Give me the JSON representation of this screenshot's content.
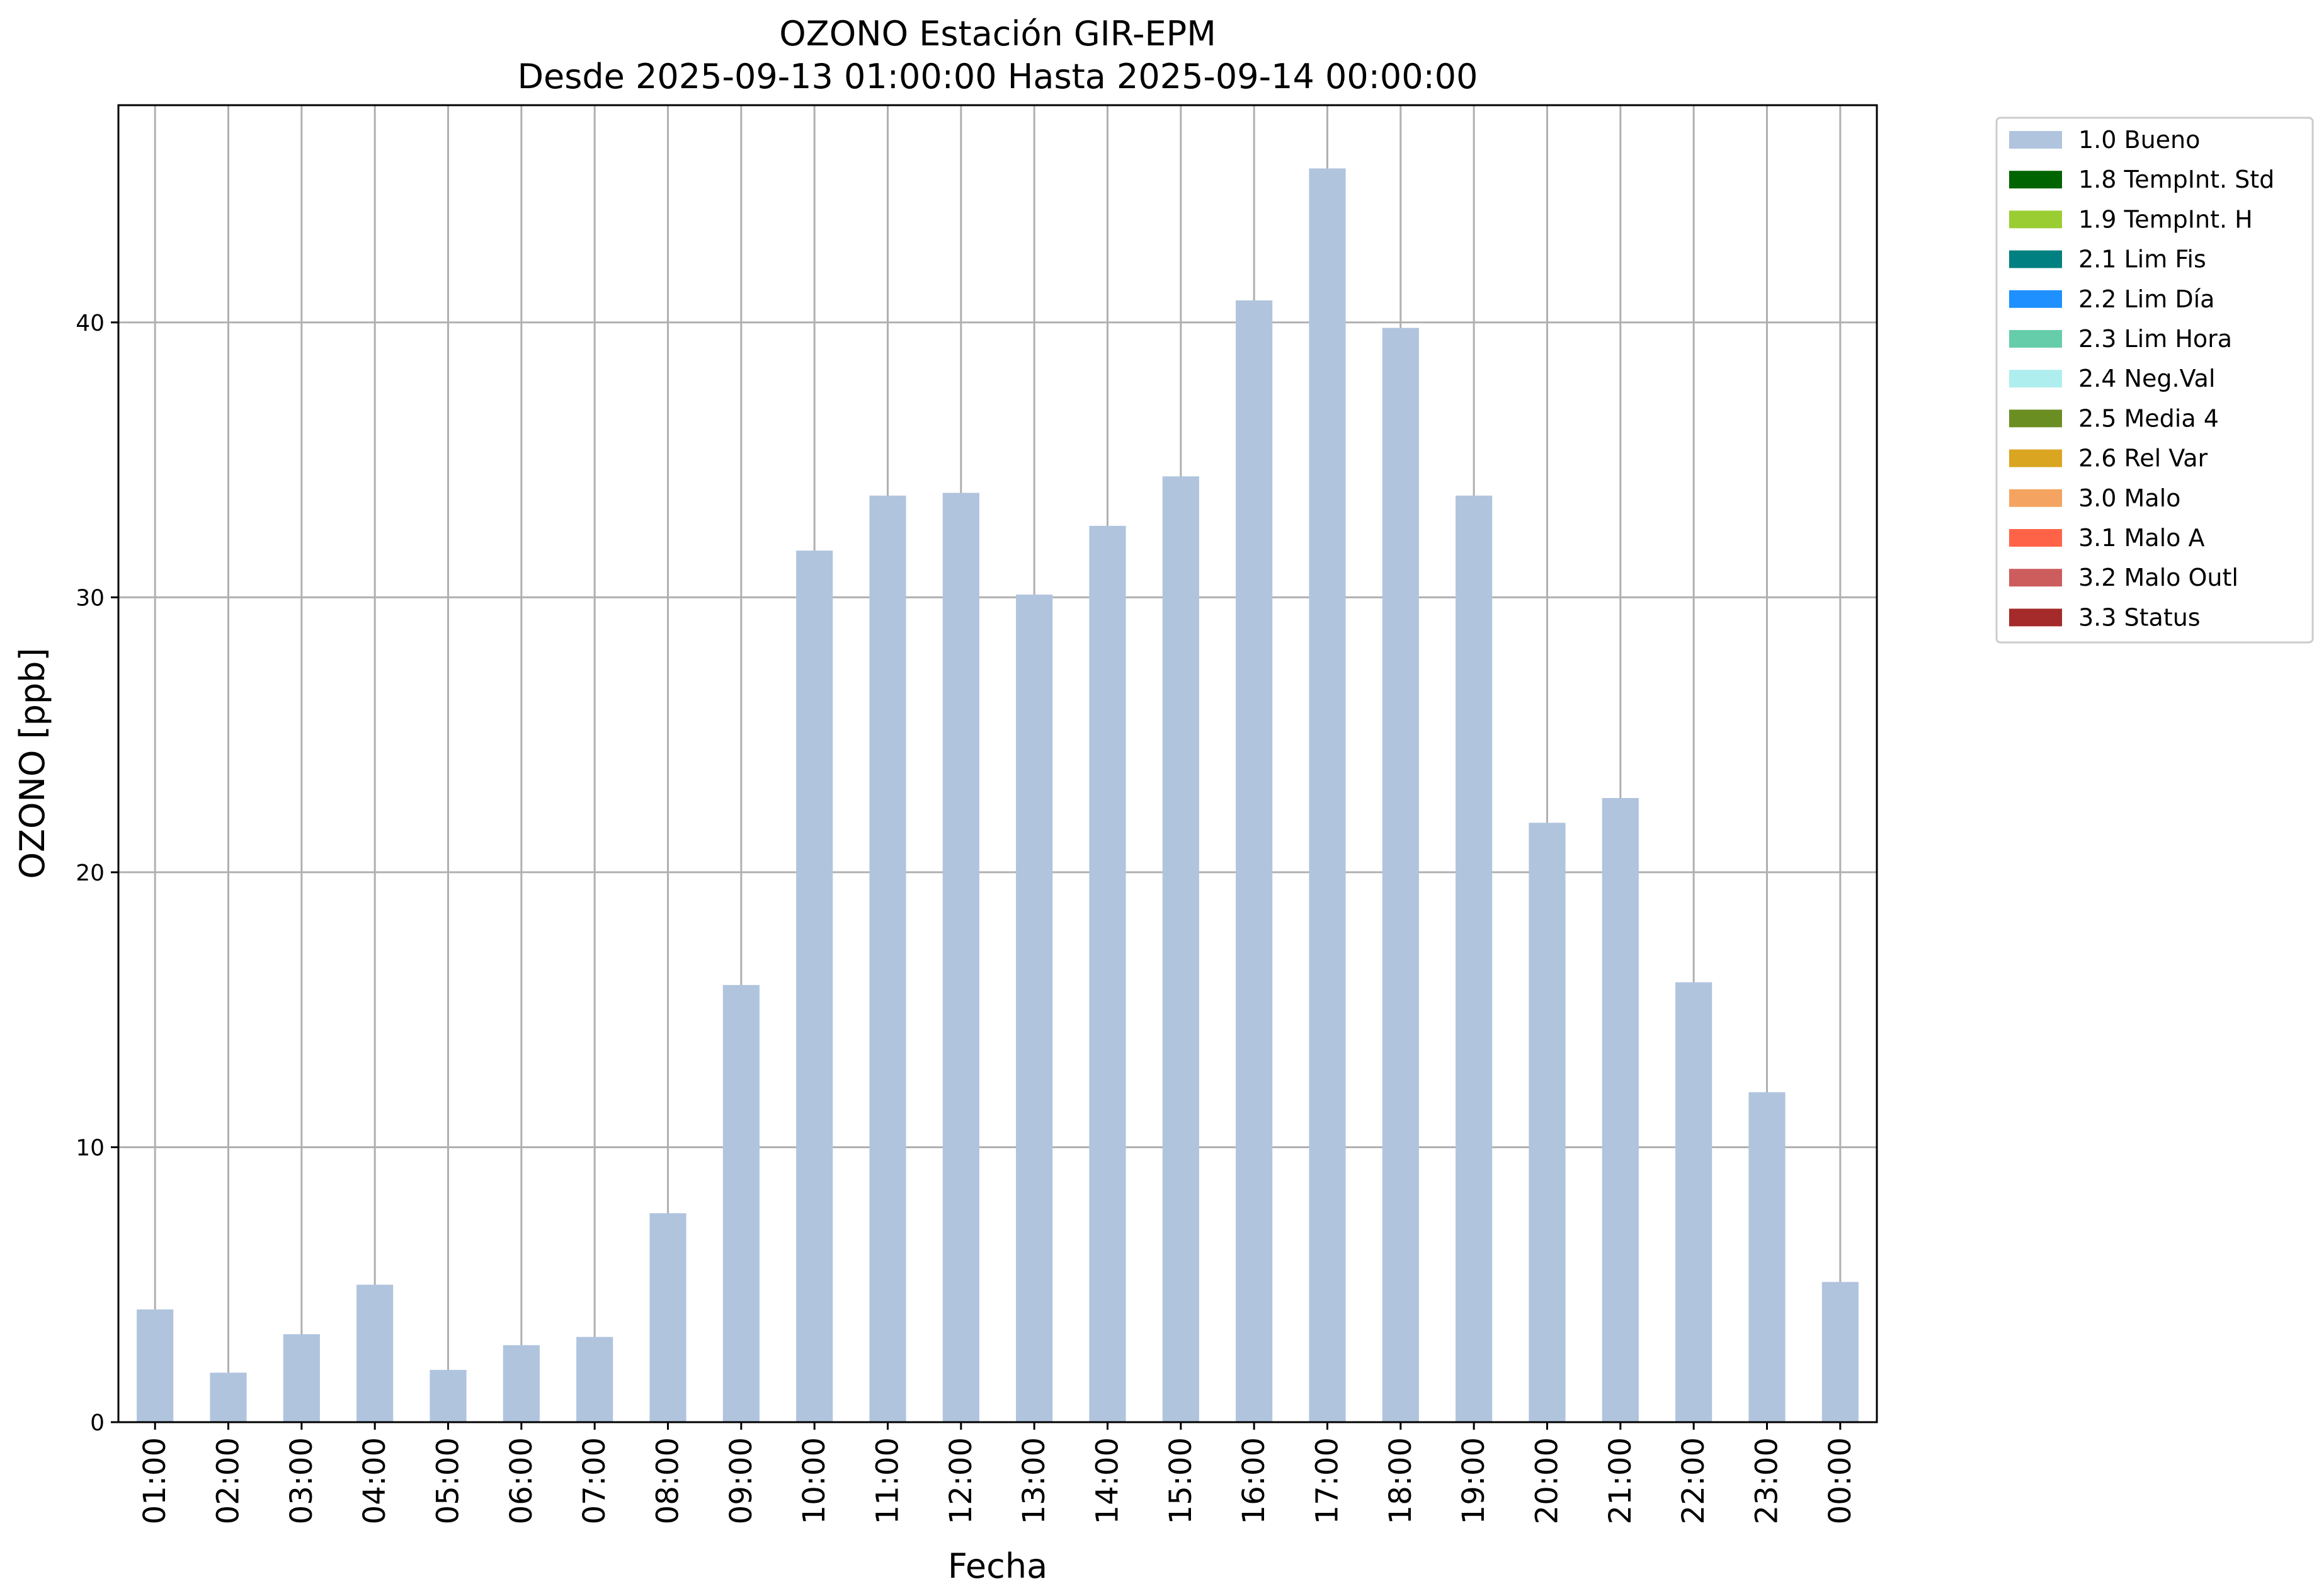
{
  "chart_data": {
    "type": "bar",
    "title_line1": "OZONO Estación GIR-EPM",
    "title_line2": "Desde 2025-09-13 01:00:00 Hasta 2025-09-14 00:00:00",
    "xlabel": "Fecha",
    "ylabel": "OZONO [ppb]",
    "categories": [
      "01:00",
      "02:00",
      "03:00",
      "04:00",
      "05:00",
      "06:00",
      "07:00",
      "08:00",
      "09:00",
      "10:00",
      "11:00",
      "12:00",
      "13:00",
      "14:00",
      "15:00",
      "16:00",
      "17:00",
      "18:00",
      "19:00",
      "20:00",
      "21:00",
      "22:00",
      "23:00",
      "00:00"
    ],
    "series": [
      {
        "name": "1.0 Bueno",
        "color": "#b0c4de",
        "values": [
          4.1,
          1.8,
          3.2,
          5.0,
          1.9,
          2.8,
          3.1,
          7.6,
          15.9,
          31.7,
          33.7,
          33.8,
          30.1,
          32.6,
          34.4,
          40.8,
          45.6,
          39.8,
          33.7,
          21.8,
          22.7,
          16.0,
          12.0,
          5.1
        ]
      }
    ],
    "ylim": [
      0,
      47.9
    ],
    "yticks": [
      0,
      10,
      20,
      30,
      40
    ],
    "grid": true,
    "legend_position": "outside-top-right",
    "legend": [
      {
        "label": "1.0 Bueno",
        "color": "#b0c4de"
      },
      {
        "label": "1.8 TempInt. Std",
        "color": "#006400"
      },
      {
        "label": "1.9 TempInt. H",
        "color": "#9acd32"
      },
      {
        "label": "2.1 Lim Fis",
        "color": "#008080"
      },
      {
        "label": "2.2 Lim Día",
        "color": "#1e90ff"
      },
      {
        "label": "2.3 Lim Hora",
        "color": "#66cdaa"
      },
      {
        "label": "2.4 Neg.Val",
        "color": "#afeeee"
      },
      {
        "label": "2.5 Media 4",
        "color": "#6b8e23"
      },
      {
        "label": "2.6 Rel Var",
        "color": "#daa520"
      },
      {
        "label": "3.0 Malo",
        "color": "#f4a460"
      },
      {
        "label": "3.1 Malo A",
        "color": "#ff6347"
      },
      {
        "label": "3.2 Malo Outl",
        "color": "#cd5c5c"
      },
      {
        "label": "3.3 Status",
        "color": "#a52a2a"
      }
    ]
  }
}
